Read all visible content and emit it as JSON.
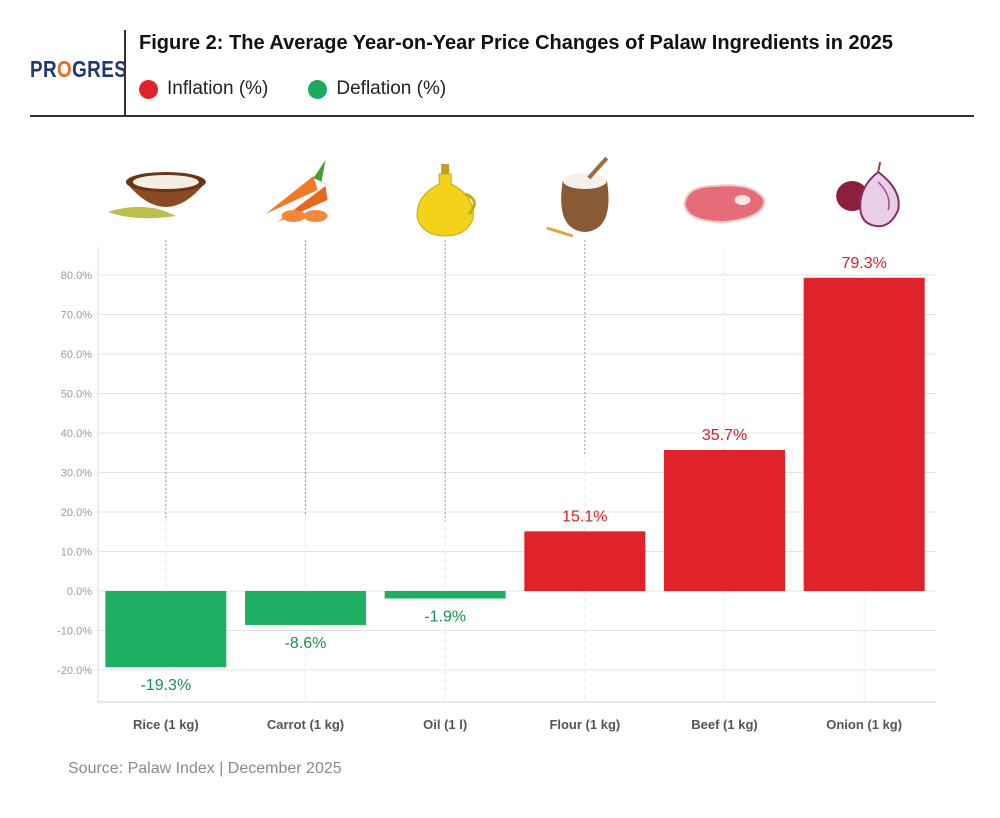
{
  "header": {
    "logo_prefix": "PR",
    "logo_o": "O",
    "logo_suffix": "GRES",
    "title": "Figure 2: The Average Year-on-Year Price Changes of Palaw Ingredients in 2025"
  },
  "legend": [
    {
      "label": "Inflation (%)",
      "color": "#e0232a"
    },
    {
      "label": "Deflation (%)",
      "color": "#1aab5e"
    }
  ],
  "colors": {
    "inflation": "#e0232a",
    "deflation": "#1faf62",
    "inflation_text": "#d61f26",
    "deflation_text": "#16914f"
  },
  "chart_data": {
    "type": "bar",
    "title": "The Average Year-on-Year Price Changes of Palaw Ingredients in 2025",
    "categories": [
      "Rice (1 kg)",
      "Carrot (1 kg)",
      "Oil (1 l)",
      "Flour (1 kg)",
      "Beef (1 kg)",
      "Onion (1 kg)"
    ],
    "icons": [
      "rice-bowl-icon",
      "carrot-icon",
      "oil-bottle-icon",
      "flour-sack-icon",
      "beef-steak-icon",
      "onion-icon"
    ],
    "values": [
      -19.3,
      -8.6,
      -1.9,
      15.1,
      35.7,
      79.3
    ],
    "value_labels": [
      "-19.3%",
      "-8.6%",
      "-1.9%",
      "15.1%",
      "35.7%",
      "79.3%"
    ],
    "yticks": [
      -20,
      -10,
      0,
      10,
      20,
      30,
      40,
      50,
      60,
      70,
      80
    ],
    "ytick_labels": [
      "-20.0%",
      "-10.0%",
      "0.0%",
      "10.0%",
      "20.0%",
      "30.0%",
      "40.0%",
      "50.0%",
      "60.0%",
      "70.0%",
      "80.0%"
    ],
    "ylim": [
      -28,
      88
    ],
    "xlabel": "",
    "ylabel": "",
    "grid": true
  },
  "source": "Source: Palaw Index | December 2025"
}
